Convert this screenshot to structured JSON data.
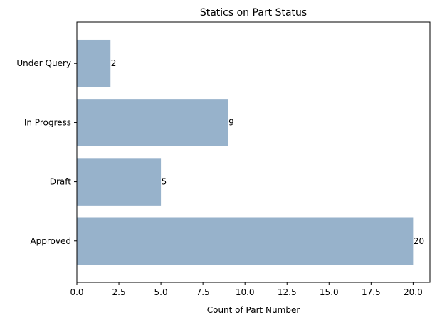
{
  "chart_data": {
    "type": "bar",
    "orientation": "horizontal",
    "title": "Statics on Part Status",
    "xlabel": "Count of Part Number",
    "ylabel": "",
    "categories": [
      "Approved",
      "Draft",
      "In Progress",
      "Under Query"
    ],
    "values": [
      20,
      5,
      9,
      2
    ],
    "data_labels": [
      "20",
      "5",
      "9",
      "2"
    ],
    "xlim": [
      0,
      21
    ],
    "xticks": [
      0,
      2.5,
      5,
      7.5,
      10,
      12.5,
      15,
      17.5,
      20
    ],
    "xtick_labels": [
      "0.0",
      "2.5",
      "5.0",
      "7.5",
      "10.0",
      "12.5",
      "15.0",
      "17.5",
      "20.0"
    ],
    "bar_color": "#97b2cb",
    "grid": false,
    "legend": "none"
  }
}
